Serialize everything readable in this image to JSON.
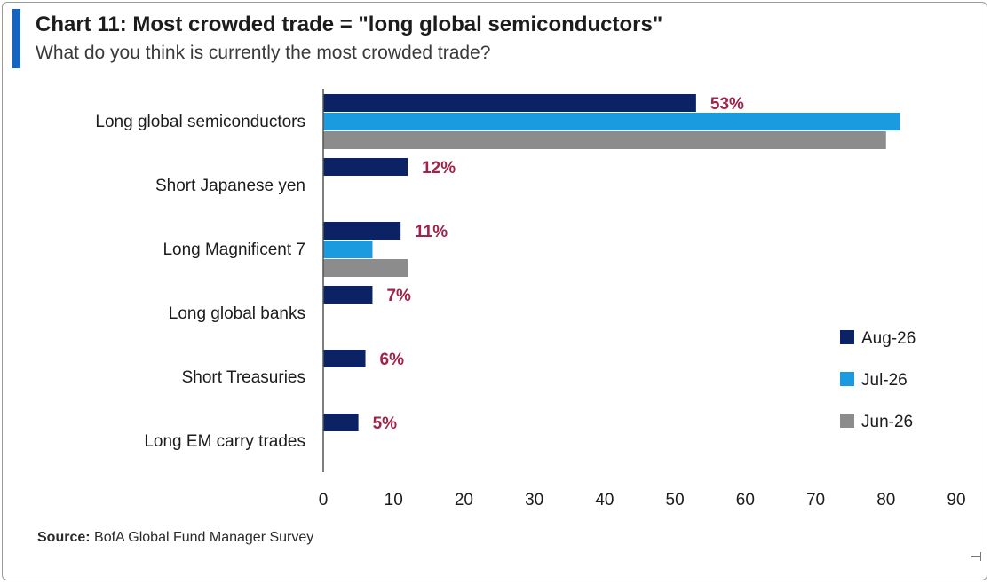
{
  "header": {
    "title": "Chart 11: Most crowded trade = \"long global semiconductors\"",
    "subtitle": "What do you think is currently the most crowded trade?"
  },
  "footer": {
    "source_label": "Source:",
    "source_text": " BofA Global Fund Manager Survey"
  },
  "colors": {
    "accent": "#1565c0",
    "Aug-26": "#0b2265",
    "Jul-26": "#1a9be0",
    "Jun-26": "#8c8c8c",
    "data_label": "#a0244a"
  },
  "chart_data": {
    "type": "bar",
    "orientation": "horizontal",
    "categories": [
      "Long global semiconductors",
      "Short Japanese yen",
      "Long Magnificent 7",
      "Long global banks",
      "Short Treasuries",
      "Long EM carry trades"
    ],
    "series": [
      {
        "name": "Aug-26",
        "values": [
          53,
          12,
          11,
          7,
          6,
          5
        ]
      },
      {
        "name": "Jul-26",
        "values": [
          82,
          null,
          7,
          null,
          null,
          null
        ]
      },
      {
        "name": "Jun-26",
        "values": [
          80,
          null,
          12,
          null,
          null,
          null
        ]
      }
    ],
    "data_labels": [
      "53%",
      "12%",
      "11%",
      "7%",
      "6%",
      "5%"
    ],
    "xlim": [
      0,
      90
    ],
    "xticks": [
      0,
      10,
      20,
      30,
      40,
      50,
      60,
      70,
      80,
      90
    ],
    "grid": false,
    "legend_position": "right"
  }
}
